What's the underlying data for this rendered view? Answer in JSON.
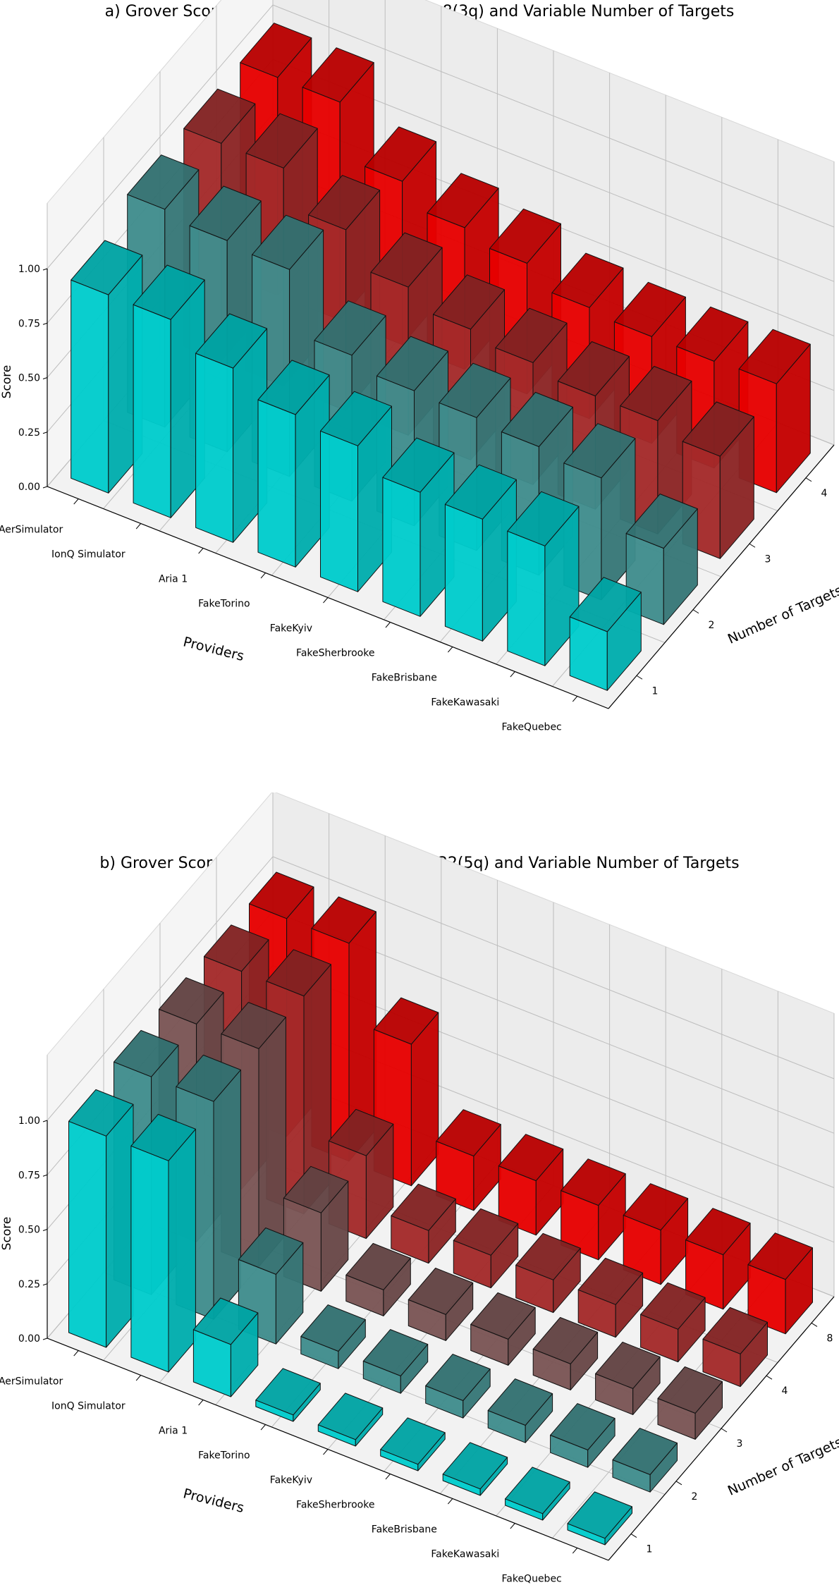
{
  "chart_data": [
    {
      "type": "bar3d",
      "title": "a) Grover Score with Fixed Search Space = 8(3q) and Variable Number of Targets",
      "xlabel": "Providers",
      "ylabel": "Number of Targets (M)",
      "zlabel": "Score",
      "zlim": [
        0,
        1
      ],
      "zticks": [
        "0.00",
        "0.25",
        "0.50",
        "0.75",
        "1.00"
      ],
      "grid": true,
      "categories": [
        "AerSimulator",
        "IonQ Simulator",
        "Aria 1",
        "FakeTorino",
        "FakeKyiv",
        "FakeSherbrooke",
        "FakeBrisbane",
        "FakeKawasaki",
        "FakeQuebec"
      ],
      "series": [
        {
          "name": "1",
          "color": "#00cccc",
          "values": [
            0.91,
            0.91,
            0.8,
            0.7,
            0.67,
            0.57,
            0.56,
            0.55,
            0.27
          ]
        },
        {
          "name": "2",
          "color": "#3f8c8c",
          "values": [
            1.0,
            0.97,
            0.95,
            0.67,
            0.62,
            0.61,
            0.59,
            0.56,
            0.35
          ]
        },
        {
          "name": "3",
          "color": "#a32a2a",
          "values": [
            1.0,
            1.0,
            0.83,
            0.68,
            0.6,
            0.56,
            0.52,
            0.52,
            0.47
          ]
        },
        {
          "name": "4",
          "color": "#e60000",
          "values": [
            1.0,
            1.0,
            0.75,
            0.65,
            0.6,
            0.51,
            0.49,
            0.49,
            0.5
          ]
        }
      ]
    },
    {
      "type": "bar3d",
      "title": "b) Grover Score with Fixed Search Space = 32(5q) and Variable Number of Targets",
      "xlabel": "Providers",
      "ylabel": "Number of Targets (M)",
      "zlabel": "Score",
      "zlim": [
        0,
        1
      ],
      "zticks": [
        "0.00",
        "0.25",
        "0.50",
        "0.75",
        "1.00"
      ],
      "grid": true,
      "categories": [
        "AerSimulator",
        "IonQ Simulator",
        "Aria 1",
        "FakeTorino",
        "FakeKyiv",
        "FakeSherbrooke",
        "FakeBrisbane",
        "FakeKawasaki",
        "FakeQuebec"
      ],
      "series": [
        {
          "name": "1",
          "color": "#00cccc",
          "values": [
            0.97,
            0.97,
            0.24,
            0.03,
            0.03,
            0.03,
            0.03,
            0.03,
            0.03
          ]
        },
        {
          "name": "2",
          "color": "#3f8c8c",
          "values": [
            1.0,
            1.0,
            0.32,
            0.08,
            0.08,
            0.08,
            0.08,
            0.08,
            0.08
          ]
        },
        {
          "name": "3",
          "color": "#7a5454",
          "values": [
            1.0,
            1.0,
            0.36,
            0.12,
            0.12,
            0.12,
            0.12,
            0.12,
            0.12
          ]
        },
        {
          "name": "4",
          "color": "#a32a2a",
          "values": [
            1.0,
            1.0,
            0.38,
            0.15,
            0.15,
            0.15,
            0.15,
            0.15,
            0.15
          ]
        },
        {
          "name": "8",
          "color": "#e60000",
          "values": [
            1.0,
            1.0,
            0.65,
            0.25,
            0.25,
            0.25,
            0.25,
            0.25,
            0.25
          ]
        }
      ]
    }
  ]
}
